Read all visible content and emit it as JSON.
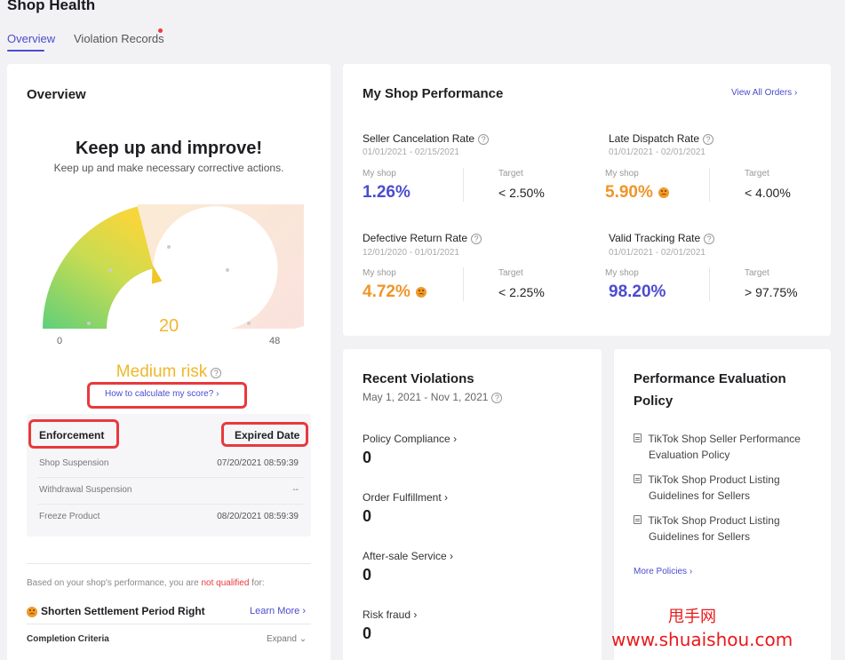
{
  "page": {
    "title": "Shop Health"
  },
  "tabs": [
    {
      "label": "Overview"
    },
    {
      "label": "Violation Records"
    }
  ],
  "overview": {
    "title": "Overview",
    "headline": "Keep up and improve!",
    "subtext": "Keep up and make necessary corrective actions.",
    "gauge": {
      "value": "20",
      "min": "0",
      "max": "48",
      "fraction": 0.42
    },
    "risk": "Medium risk",
    "score_link": "How to calculate my score?",
    "enforcement": {
      "header_left": "Enforcement",
      "header_right": "Expired Date",
      "rows": [
        {
          "name": "Shop Suspension",
          "date": "07/20/2021 08:59:39"
        },
        {
          "name": "Withdrawal Suspension",
          "date": "--"
        },
        {
          "name": "Freeze Product",
          "date": "08/20/2021 08:59:39"
        }
      ]
    },
    "qualify": {
      "prefix": "Based on your shop's performance, you are ",
      "highlight": "not qualified",
      "suffix": " for:"
    },
    "benefit": {
      "label": "Shorten Settlement Period Right",
      "link": "Learn More"
    },
    "criteria": {
      "label": "Completion Criteria",
      "expand": "Expand"
    }
  },
  "performance": {
    "title": "My Shop Performance",
    "view_all": "View All Orders",
    "my_shop_label": "My shop",
    "target_label": "Target",
    "metrics": [
      {
        "name": "Seller Cancelation Rate",
        "dates": "01/01/2021 - 02/15/2021",
        "value": "1.26%",
        "target": "< 2.50%",
        "status_color": "#4b4ccf"
      },
      {
        "name": "Late Dispatch Rate",
        "dates": "01/01/2021 - 02/01/2021",
        "value": "5.90%",
        "target": "< 4.00%",
        "status_color": "#f0952a"
      },
      {
        "name": "Defective Return Rate",
        "dates": "12/01/2020 - 01/01/2021",
        "value": "4.72%",
        "target": "< 2.25%",
        "status_color": "#f0952a"
      },
      {
        "name": "Valid Tracking Rate",
        "dates": "01/01/2021 - 02/01/2021",
        "value": "98.20%",
        "target": "> 97.75%",
        "status_color": "#4b4ccf"
      }
    ]
  },
  "violations": {
    "title": "Recent Violations",
    "range": "May 1, 2021 - Nov 1, 2021",
    "items": [
      {
        "label": "Policy Compliance",
        "value": "0"
      },
      {
        "label": "Order Fulfillment",
        "value": "0"
      },
      {
        "label": "After-sale Service",
        "value": "0"
      },
      {
        "label": "Risk fraud",
        "value": "0"
      }
    ]
  },
  "policy": {
    "title_line1": "Performance Evaluation",
    "title_line2": "Policy",
    "items": [
      {
        "line1": "TikTok Shop Seller Performance",
        "line2": "Evaluation Policy"
      },
      {
        "line1": "TikTok Shop Product Listing",
        "line2": "Guidelines for Sellers"
      },
      {
        "line1": "TikTok Shop Product Listing",
        "line2": "Guidelines for Sellers"
      }
    ],
    "more": "More Policies"
  },
  "watermark": {
    "line1": "甩手网",
    "line2": "www.shuaishou.com"
  },
  "colors": {
    "accent": "#4b4ccf",
    "warning": "#f0952a",
    "danger": "#e8393d"
  }
}
